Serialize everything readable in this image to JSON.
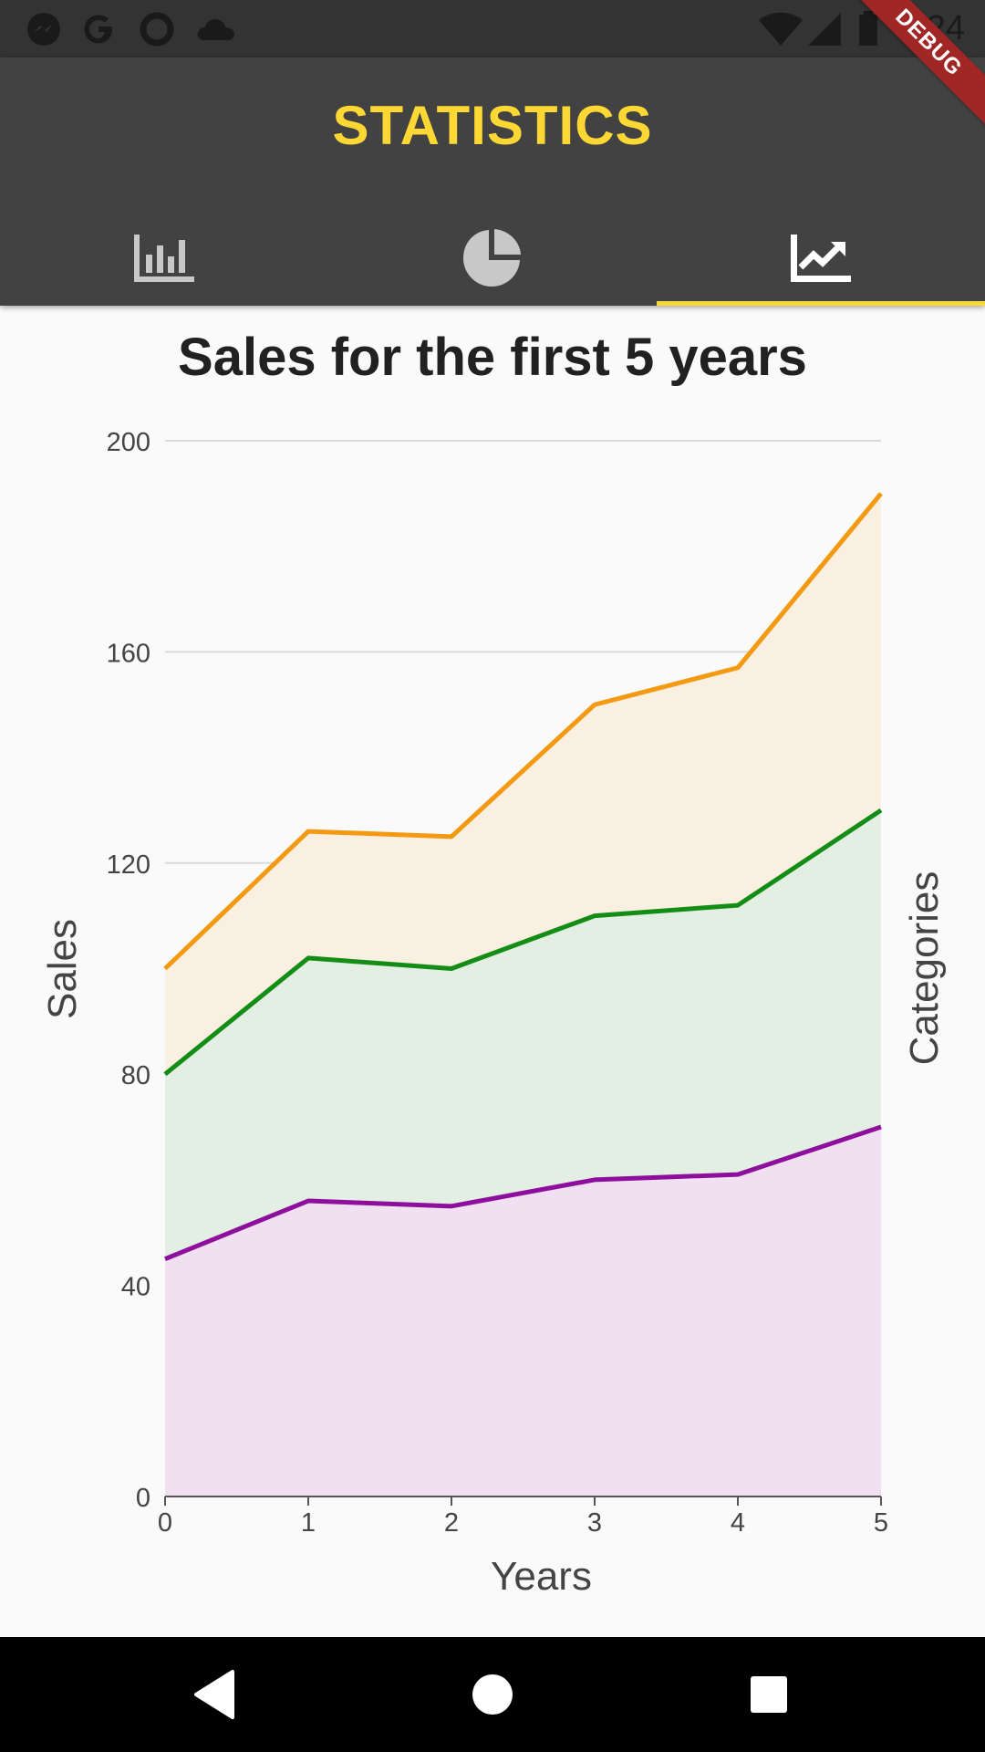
{
  "status_bar": {
    "time": "7:24",
    "left_icons": [
      "messenger-icon",
      "google-icon",
      "circle-app-icon",
      "cloud-icon"
    ],
    "right_icons": [
      "wifi-icon",
      "signal-icon",
      "battery-icon"
    ]
  },
  "app_bar": {
    "title": "STATISTICS",
    "title_color": "#fdd835",
    "background": "#424242",
    "tabs": [
      {
        "name": "bar-chart-tab",
        "icon": "bar-chart-icon",
        "selected": false
      },
      {
        "name": "pie-chart-tab",
        "icon": "pie-chart-icon",
        "selected": false
      },
      {
        "name": "line-chart-tab",
        "icon": "trending-up-icon",
        "selected": true
      }
    ]
  },
  "debug_banner": "DEBUG",
  "chart_data": {
    "type": "area",
    "title": "Sales for the first 5 years",
    "xlabel": "Years",
    "ylabel": "Sales",
    "secondary_label": "Categories",
    "x": [
      0,
      1,
      2,
      3,
      4,
      5
    ],
    "x_ticks": [
      "0",
      "1",
      "2",
      "3",
      "4",
      "5"
    ],
    "y_ticks": [
      "0",
      "40",
      "80",
      "120",
      "160",
      "200"
    ],
    "ylim": [
      0,
      200
    ],
    "xlim": [
      0,
      5
    ],
    "stacked": true,
    "grid": true,
    "series": [
      {
        "values": [
          45,
          56,
          55,
          60,
          61,
          70
        ],
        "color": "#8e0e9e",
        "fill": "#f1e0f1"
      },
      {
        "values": [
          35,
          46,
          45,
          50,
          51,
          60
        ],
        "color": "#138d15",
        "fill": "#e3efe3"
      },
      {
        "values": [
          20,
          24,
          25,
          40,
          45,
          60
        ],
        "color": "#f39a12",
        "fill": "#f9f0e1"
      }
    ]
  },
  "nav_bar": {
    "buttons": [
      "back-button",
      "home-button",
      "recents-button"
    ]
  }
}
